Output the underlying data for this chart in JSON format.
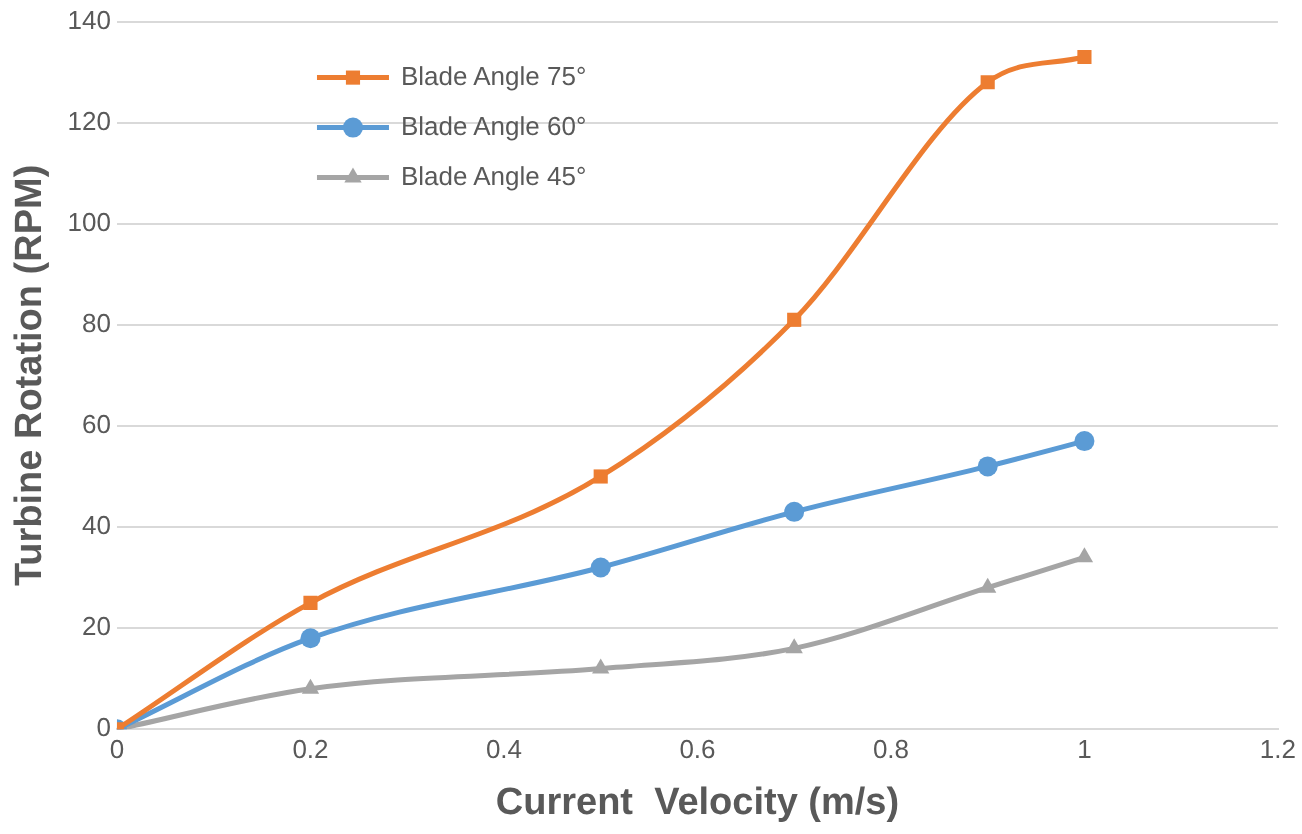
{
  "chart_data": {
    "type": "line",
    "xlabel": "Current  Velocity (m/s)",
    "ylabel": "Turbine Rotation (RPM)",
    "xlim": [
      0,
      1.2
    ],
    "xticks": [
      0,
      0.2,
      0.4,
      0.6,
      0.8,
      1,
      1.2
    ],
    "ylim": [
      0,
      140
    ],
    "yticks": [
      0,
      20,
      40,
      60,
      80,
      100,
      120,
      140
    ],
    "grid": "y",
    "legend": "top left",
    "series": [
      {
        "name": "Blade Angle 75°",
        "color": "#ed7d31",
        "marker": "square",
        "x": [
          0,
          0.2,
          0.5,
          0.7,
          0.9,
          1
        ],
        "values": [
          0,
          25,
          50,
          81,
          128,
          133
        ]
      },
      {
        "name": "Blade Angle 60°",
        "color": "#5b9bd5",
        "marker": "circle",
        "x": [
          0,
          0.2,
          0.5,
          0.7,
          0.9,
          1
        ],
        "values": [
          0,
          18,
          32,
          43,
          52,
          57
        ]
      },
      {
        "name": "Blade Angle 45°",
        "color": "#a5a5a5",
        "marker": "triangle",
        "x": [
          0,
          0.2,
          0.5,
          0.7,
          0.9,
          1
        ],
        "values": [
          0,
          8,
          12,
          16,
          28,
          34
        ]
      }
    ]
  }
}
